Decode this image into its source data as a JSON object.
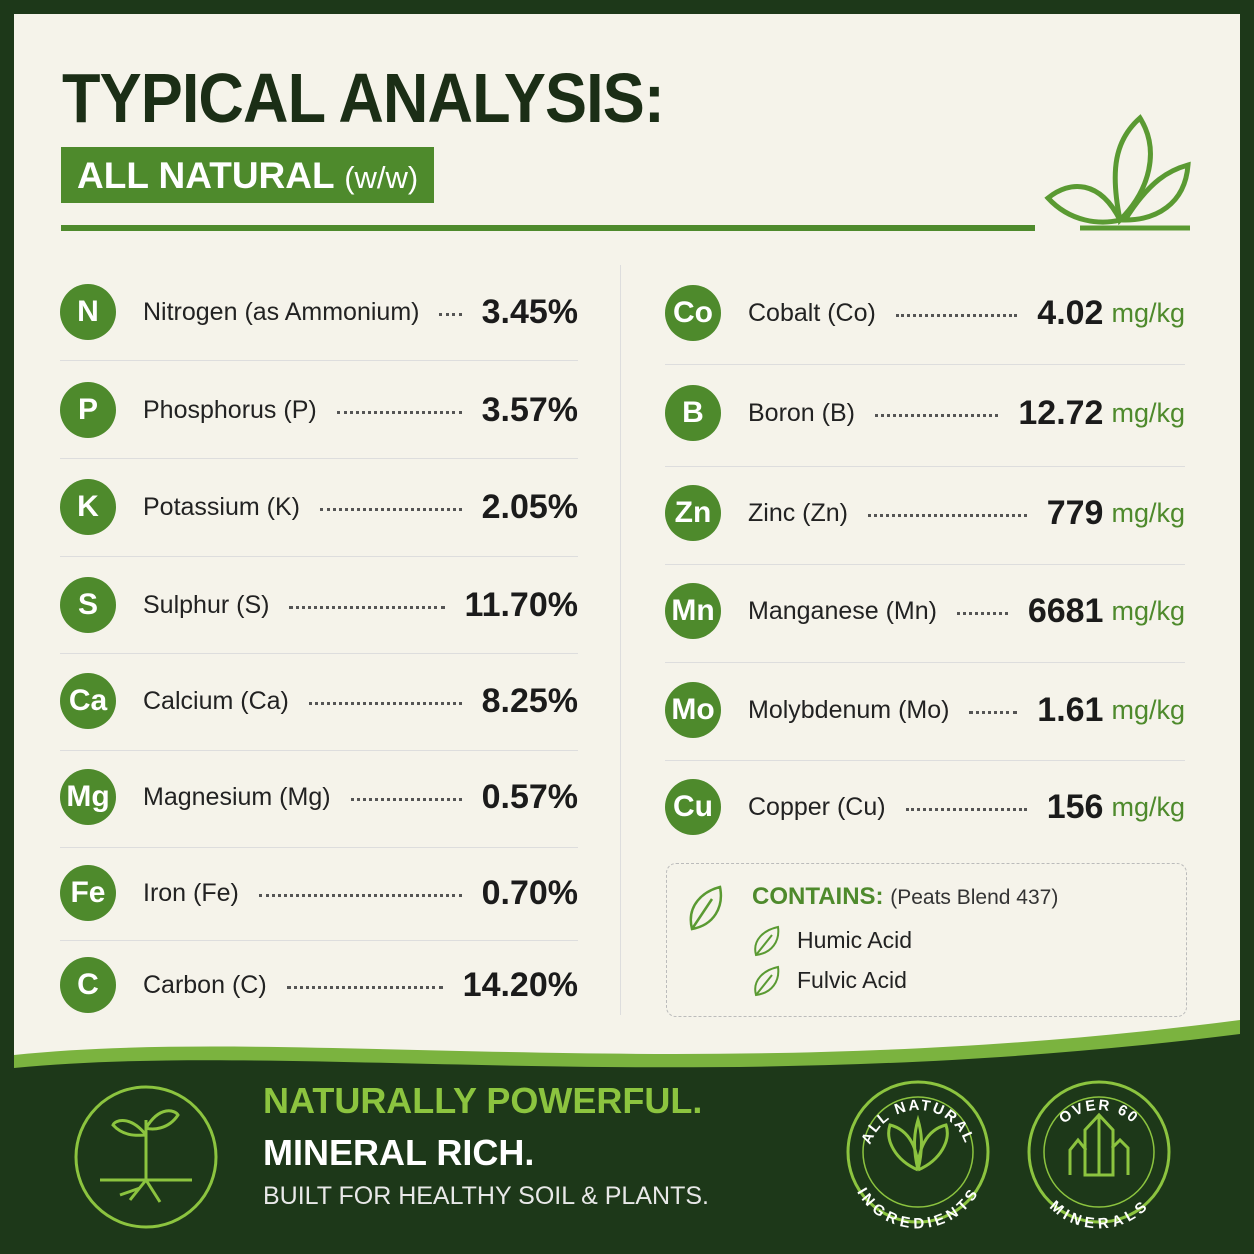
{
  "header": {
    "title": "TYPICAL ANALYSIS:",
    "subtitle": "ALL NATURAL",
    "subtitle_note": "(w/w)"
  },
  "left": [
    {
      "symbol": "N",
      "name": "Nitrogen (as Ammonium)",
      "value": "3.45%"
    },
    {
      "symbol": "P",
      "name": "Phosphorus (P)",
      "value": "3.57%"
    },
    {
      "symbol": "K",
      "name": "Potassium (K)",
      "value": "2.05%"
    },
    {
      "symbol": "S",
      "name": "Sulphur (S)",
      "value": "11.70%"
    },
    {
      "symbol": "Ca",
      "name": "Calcium (Ca)",
      "value": "8.25%"
    },
    {
      "symbol": "Mg",
      "name": "Magnesium (Mg)",
      "value": "0.57%"
    },
    {
      "symbol": "Fe",
      "name": "Iron (Fe)",
      "value": "0.70%"
    },
    {
      "symbol": "C",
      "name": "Carbon (C)",
      "value": "14.20%"
    }
  ],
  "right": [
    {
      "symbol": "Co",
      "name": "Cobalt (Co)",
      "value": "4.02",
      "unit": "mg/kg"
    },
    {
      "symbol": "B",
      "name": "Boron (B)",
      "value": "12.72",
      "unit": "mg/kg"
    },
    {
      "symbol": "Zn",
      "name": "Zinc (Zn)",
      "value": "779",
      "unit": "mg/kg"
    },
    {
      "symbol": "Mn",
      "name": "Manganese (Mn)",
      "value": "6681",
      "unit": "mg/kg"
    },
    {
      "symbol": "Mo",
      "name": "Molybdenum (Mo)",
      "value": "1.61",
      "unit": "mg/kg"
    },
    {
      "symbol": "Cu",
      "name": "Copper (Cu)",
      "value": "156",
      "unit": "mg/kg"
    }
  ],
  "contains": {
    "label": "CONTAINS:",
    "note": "(Peats Blend 437)",
    "items": [
      "Humic Acid",
      "Fulvic Acid"
    ]
  },
  "footer": {
    "line1": "NATURALLY POWERFUL.",
    "line2": "MINERAL RICH.",
    "line3": "BUILT FOR HEALTHY SOIL & PLANTS.",
    "badges": [
      {
        "top": "ALL NATURAL",
        "bottom": "INGREDIENTS"
      },
      {
        "top": "OVER 60",
        "bottom": "MINERALS"
      }
    ]
  }
}
